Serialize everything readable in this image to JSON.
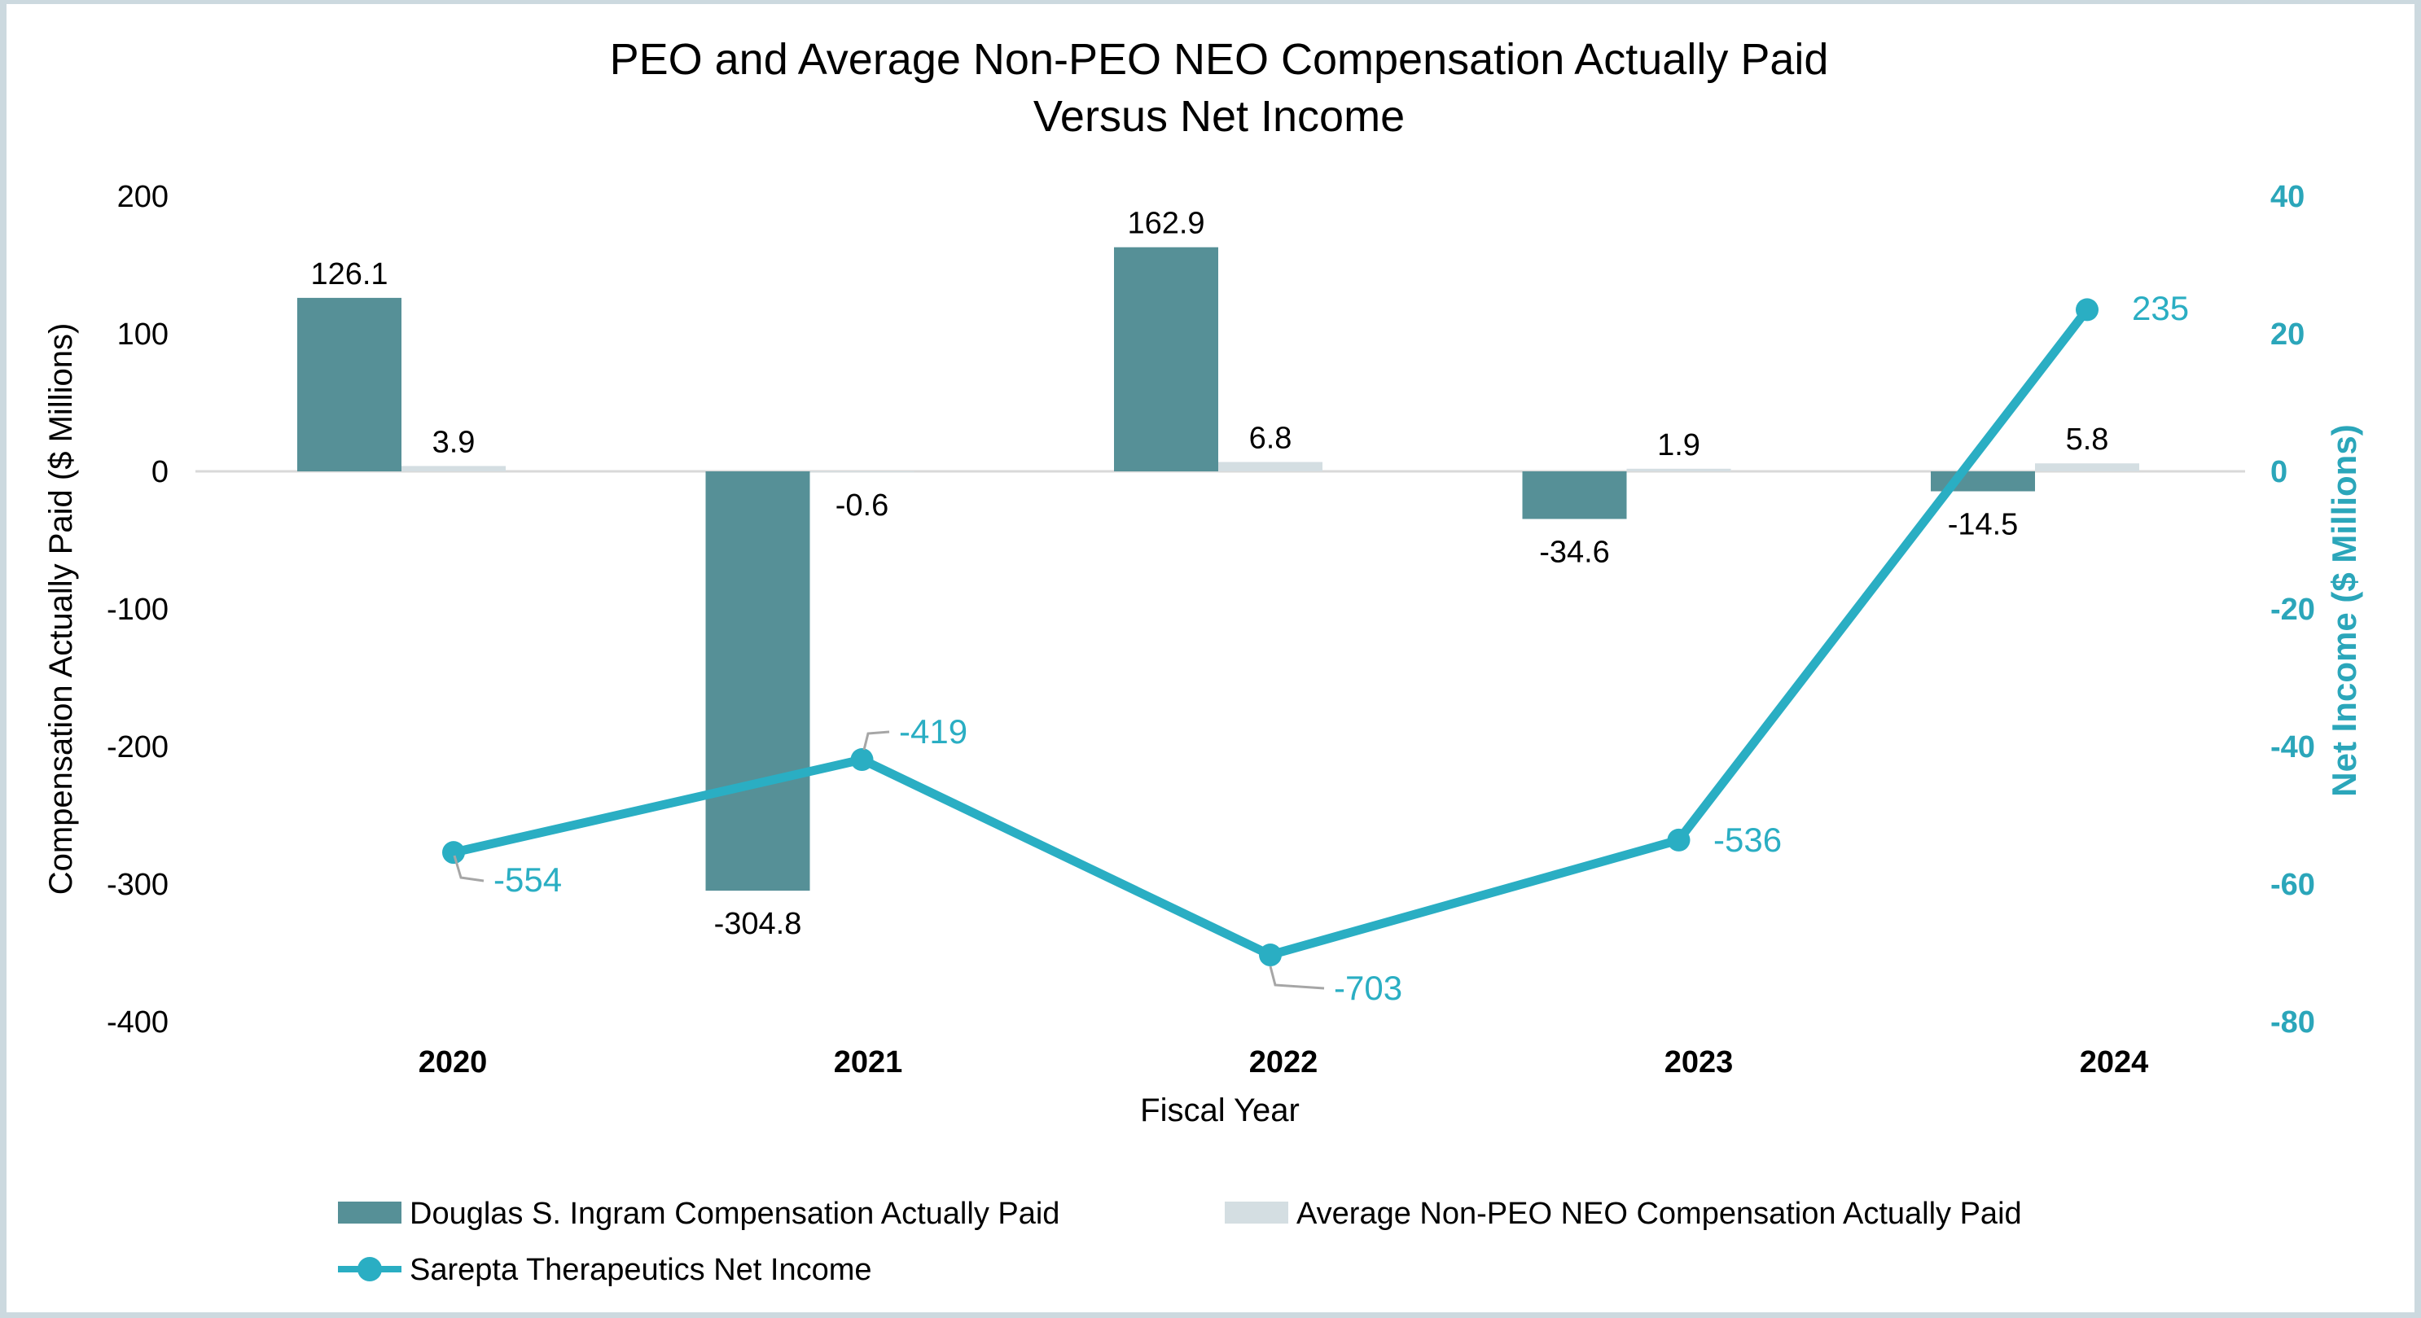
{
  "title": {
    "line1": "PEO and Average Non-PEO NEO Compensation Actually Paid",
    "line2": "Versus Net Income"
  },
  "frame": {
    "border_color": "#ccd9df",
    "background_color": "#ffffff"
  },
  "chart_data": {
    "type": "combo-bar-line",
    "title": "PEO and Average Non-PEO NEO Compensation Actually Paid Versus Net Income",
    "categories": [
      "2020",
      "2021",
      "2022",
      "2023",
      "2024"
    ],
    "series": [
      {
        "name": "Douglas S. Ingram Compensation Actually Paid",
        "type": "bar",
        "axis": "left",
        "color": "#569097",
        "values": [
          126.1,
          -304.8,
          162.9,
          -34.6,
          -14.5
        ]
      },
      {
        "name": "Average Non-PEO NEO Compensation Actually Paid",
        "type": "bar",
        "axis": "left",
        "color": "#d4dee2",
        "values": [
          3.9,
          -0.6,
          6.8,
          1.9,
          5.8
        ]
      },
      {
        "name": "Sarepta Therapeutics Net Income",
        "type": "line",
        "axis": "right",
        "color": "#2aaec3",
        "values": [
          -554,
          -419,
          -703,
          -536,
          235
        ]
      }
    ],
    "left_axis": {
      "title": "Compensation Actually Paid ($ Millions)",
      "ticks": [
        "200",
        "100",
        "0",
        "-100",
        "-200",
        "-300",
        "-400"
      ],
      "tick_values": [
        200,
        100,
        0,
        -100,
        -200,
        -300,
        -400
      ],
      "range": [
        -400,
        200
      ],
      "color": "#000000"
    },
    "right_axis": {
      "title": "Net Income ($ Millions)",
      "ticks": [
        "40",
        "20",
        "0",
        "-20",
        "-40",
        "-60",
        "-80"
      ],
      "tick_values": [
        40,
        20,
        0,
        -20,
        -40,
        -60,
        -80
      ],
      "range": [
        -80,
        40
      ],
      "color": "#2ba6ba"
    },
    "x_axis": {
      "title": "Fiscal Year"
    },
    "legend": {
      "position": "bottom-left",
      "entries": [
        "Douglas S. Ingram Compensation Actually Paid",
        "Average Non-PEO NEO Compensation Actually Paid",
        "Sarepta Therapeutics Net Income"
      ]
    },
    "gridline_color": "#d9d9d9",
    "leader_color": "#a6a6a6",
    "grid": "zero-line-only"
  }
}
